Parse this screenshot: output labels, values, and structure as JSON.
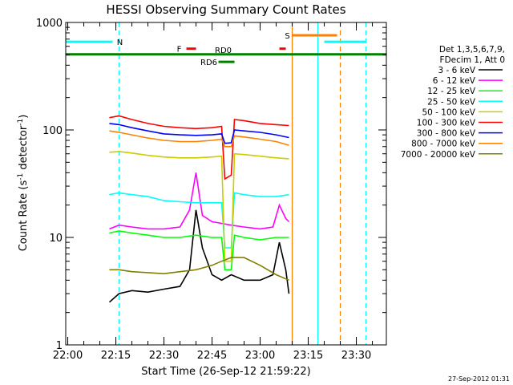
{
  "chart_data": {
    "type": "line",
    "title": "HESSI Observing Summary Count Rates",
    "xlabel": "Start Time (26-Sep-12 21:59:22)",
    "ylabel": "Count Rate (s^-1 detector^-1)",
    "ylabel_base": "Count Rate (s",
    "ylabel_sup1": "-1",
    "ylabel_mid": " detector",
    "ylabel_sup2": "-1",
    "ylabel_end": ")",
    "yscale": "log",
    "ylim": [
      1,
      1000
    ],
    "xlim": [
      "21:59:22",
      "23:39:22"
    ],
    "x_ticks": [
      "22:00",
      "22:15",
      "22:30",
      "22:45",
      "23:00",
      "23:15",
      "23:30"
    ],
    "y_ticks": [
      "1",
      "10",
      "100",
      "1000"
    ],
    "footer_date": "27-Sep-2012 01:31",
    "legend": {
      "placement": "right",
      "header_lines": [
        "Det 1,3,5,6,7,9,",
        "FDecim 1, Att 0"
      ]
    },
    "data_gaps": [
      [
        "22:11",
        "22:13"
      ],
      [
        "22:49",
        "22:51"
      ],
      [
        "23:10",
        "23:39"
      ]
    ],
    "series": [
      {
        "name": "3 - 6 keV",
        "color": "#000000",
        "values": [
          [
            "22:13",
            2.5
          ],
          [
            "22:16",
            3.0
          ],
          [
            "22:20",
            3.2
          ],
          [
            "22:25",
            3.1
          ],
          [
            "22:30",
            3.3
          ],
          [
            "22:35",
            3.5
          ],
          [
            "22:38",
            5.0
          ],
          [
            "22:40",
            18.0
          ],
          [
            "22:42",
            8.0
          ],
          [
            "22:45",
            4.5
          ],
          [
            "22:48",
            4.0
          ],
          [
            "22:51",
            4.5
          ],
          [
            "22:55",
            4.0
          ],
          [
            "23:00",
            4.0
          ],
          [
            "23:04",
            4.5
          ],
          [
            "23:06",
            9.0
          ],
          [
            "23:08",
            5.0
          ],
          [
            "23:09",
            3.0
          ]
        ]
      },
      {
        "name": "6 - 12 keV",
        "color": "#ff00ff",
        "values": [
          [
            "22:13",
            12.0
          ],
          [
            "22:16",
            13.0
          ],
          [
            "22:20",
            12.5
          ],
          [
            "22:25",
            12.0
          ],
          [
            "22:30",
            12.0
          ],
          [
            "22:35",
            12.5
          ],
          [
            "22:38",
            18.0
          ],
          [
            "22:40",
            40.0
          ],
          [
            "22:42",
            16.0
          ],
          [
            "22:45",
            14.0
          ],
          [
            "22:48",
            13.5
          ],
          [
            "22:51",
            13.0
          ],
          [
            "22:55",
            12.5
          ],
          [
            "23:00",
            12.0
          ],
          [
            "23:04",
            12.5
          ],
          [
            "23:06",
            20.0
          ],
          [
            "23:08",
            15.0
          ],
          [
            "23:09",
            14.0
          ]
        ]
      },
      {
        "name": "12 - 25 keV",
        "color": "#00ff00",
        "values": [
          [
            "22:13",
            11.0
          ],
          [
            "22:16",
            11.5
          ],
          [
            "22:20",
            11.0
          ],
          [
            "22:25",
            10.5
          ],
          [
            "22:30",
            10.0
          ],
          [
            "22:35",
            10.0
          ],
          [
            "22:40",
            10.5
          ],
          [
            "22:45",
            10.0
          ],
          [
            "22:48",
            10.0
          ],
          [
            "22:49",
            5.0
          ],
          [
            "22:51",
            5.0
          ],
          [
            "22:52",
            10.5
          ],
          [
            "22:55",
            10.0
          ],
          [
            "23:00",
            9.5
          ],
          [
            "23:05",
            10.0
          ],
          [
            "23:09",
            10.0
          ]
        ]
      },
      {
        "name": "25 - 50 keV",
        "color": "#00ffff",
        "values": [
          [
            "22:13",
            25.0
          ],
          [
            "22:16",
            26.0
          ],
          [
            "22:20",
            25.0
          ],
          [
            "22:25",
            24.0
          ],
          [
            "22:30",
            22.0
          ],
          [
            "22:35",
            21.5
          ],
          [
            "22:40",
            21.0
          ],
          [
            "22:45",
            21.0
          ],
          [
            "22:48",
            21.0
          ],
          [
            "22:49",
            8.0
          ],
          [
            "22:51",
            8.0
          ],
          [
            "22:52",
            26.0
          ],
          [
            "22:55",
            25.0
          ],
          [
            "23:00",
            24.0
          ],
          [
            "23:05",
            24.0
          ],
          [
            "23:09",
            25.0
          ]
        ]
      },
      {
        "name": "50 - 100 keV",
        "color": "#cccc00",
        "values": [
          [
            "22:13",
            62.0
          ],
          [
            "22:16",
            63.0
          ],
          [
            "22:20",
            61.0
          ],
          [
            "22:25",
            58.0
          ],
          [
            "22:30",
            56.0
          ],
          [
            "22:35",
            55.0
          ],
          [
            "22:40",
            55.0
          ],
          [
            "22:45",
            56.0
          ],
          [
            "22:48",
            57.0
          ],
          [
            "22:49",
            6.0
          ],
          [
            "22:51",
            6.0
          ],
          [
            "22:52",
            60.0
          ],
          [
            "22:55",
            59.0
          ],
          [
            "23:00",
            57.0
          ],
          [
            "23:05",
            55.0
          ],
          [
            "23:09",
            54.0
          ]
        ]
      },
      {
        "name": "100 - 300 keV",
        "color": "#ff0000",
        "values": [
          [
            "22:13",
            130.0
          ],
          [
            "22:16",
            135.0
          ],
          [
            "22:20",
            125.0
          ],
          [
            "22:25",
            115.0
          ],
          [
            "22:30",
            108.0
          ],
          [
            "22:35",
            105.0
          ],
          [
            "22:40",
            103.0
          ],
          [
            "22:45",
            105.0
          ],
          [
            "22:48",
            108.0
          ],
          [
            "22:49",
            35.0
          ],
          [
            "22:51",
            38.0
          ],
          [
            "22:52",
            125.0
          ],
          [
            "22:55",
            122.0
          ],
          [
            "23:00",
            115.0
          ],
          [
            "23:05",
            112.0
          ],
          [
            "23:09",
            110.0
          ]
        ]
      },
      {
        "name": "300 - 800 keV",
        "color": "#0000ff",
        "values": [
          [
            "22:13",
            115.0
          ],
          [
            "22:16",
            112.0
          ],
          [
            "22:20",
            105.0
          ],
          [
            "22:25",
            98.0
          ],
          [
            "22:30",
            92.0
          ],
          [
            "22:35",
            90.0
          ],
          [
            "22:40",
            89.0
          ],
          [
            "22:45",
            90.0
          ],
          [
            "22:48",
            92.0
          ],
          [
            "22:49",
            75.0
          ],
          [
            "22:51",
            76.0
          ],
          [
            "22:52",
            100.0
          ],
          [
            "22:55",
            98.0
          ],
          [
            "23:00",
            95.0
          ],
          [
            "23:05",
            90.0
          ],
          [
            "23:09",
            85.0
          ]
        ]
      },
      {
        "name": "800 - 7000 keV",
        "color": "#ff8000",
        "values": [
          [
            "22:13",
            98.0
          ],
          [
            "22:16",
            95.0
          ],
          [
            "22:20",
            90.0
          ],
          [
            "22:25",
            84.0
          ],
          [
            "22:30",
            80.0
          ],
          [
            "22:35",
            78.0
          ],
          [
            "22:40",
            78.0
          ],
          [
            "22:45",
            80.0
          ],
          [
            "22:48",
            82.0
          ],
          [
            "22:49",
            70.0
          ],
          [
            "22:51",
            70.0
          ],
          [
            "22:52",
            88.0
          ],
          [
            "22:55",
            86.0
          ],
          [
            "23:00",
            82.0
          ],
          [
            "23:05",
            78.0
          ],
          [
            "23:09",
            72.0
          ]
        ]
      },
      {
        "name": "7000 - 20000 keV",
        "color": "#808000",
        "values": [
          [
            "22:13",
            5.0
          ],
          [
            "22:16",
            5.0
          ],
          [
            "22:20",
            4.8
          ],
          [
            "22:25",
            4.7
          ],
          [
            "22:30",
            4.6
          ],
          [
            "22:35",
            4.8
          ],
          [
            "22:40",
            5.0
          ],
          [
            "22:45",
            5.5
          ],
          [
            "22:48",
            6.0
          ],
          [
            "22:51",
            6.5
          ],
          [
            "22:55",
            6.5
          ],
          [
            "23:00",
            5.5
          ],
          [
            "23:05",
            4.5
          ],
          [
            "23:09",
            4.0
          ]
        ]
      }
    ],
    "flags": [
      {
        "label": "N",
        "color": "#00ffff",
        "segments": [
          [
            "21:59:22",
            "22:14"
          ],
          [
            "23:20",
            "23:33"
          ]
        ],
        "level": 660
      },
      {
        "label": "S",
        "color": "#ff8000",
        "segments": [
          [
            "23:10",
            "23:24"
          ]
        ],
        "level": 760
      },
      {
        "label": "F",
        "color": "#ff0000",
        "segments": [
          [
            "22:37",
            "22:40"
          ],
          [
            "23:06",
            "23:08"
          ]
        ],
        "level": 570
      },
      {
        "label": "RD0",
        "color": "#008000",
        "segments": [
          [
            "21:59:22",
            "23:39:22"
          ]
        ],
        "level": 505
      },
      {
        "label": "RD6",
        "color": "#008000",
        "segments": [
          [
            "22:47",
            "22:52"
          ]
        ],
        "level": 430
      }
    ],
    "vertical_markers": [
      {
        "time": "22:16",
        "color": "#00ffff",
        "style": "dashed"
      },
      {
        "time": "23:10",
        "color": "#ff8000",
        "style": "solid"
      },
      {
        "time": "23:18",
        "color": "#00ffff",
        "style": "solid"
      },
      {
        "time": "23:25",
        "color": "#ff8000",
        "style": "dashed"
      },
      {
        "time": "23:33",
        "color": "#00ffff",
        "style": "dashed"
      }
    ]
  }
}
